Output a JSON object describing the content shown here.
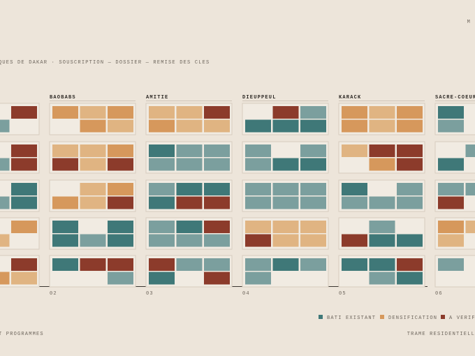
{
  "header": {
    "title": "QUES DE DAKAR · SOUSCRIPTION — DOSSIER — REMISE DES CLES",
    "corner": "M"
  },
  "columns": [
    {
      "label": "BAOBABS",
      "index": "02"
    },
    {
      "label": "AMITIE",
      "index": "03"
    },
    {
      "label": "DIEUPPEUL",
      "index": "04"
    },
    {
      "label": "KARACK",
      "index": "05"
    },
    {
      "label": "SACRE-COEUR",
      "index": "06"
    }
  ],
  "legend": [
    "BATI EXISTANT",
    "DENSIFICATION",
    "A VERIFIE"
  ],
  "footer": {
    "left": "T PROGRAMMES",
    "right": "TRAME RESIDENTIELL"
  }
}
